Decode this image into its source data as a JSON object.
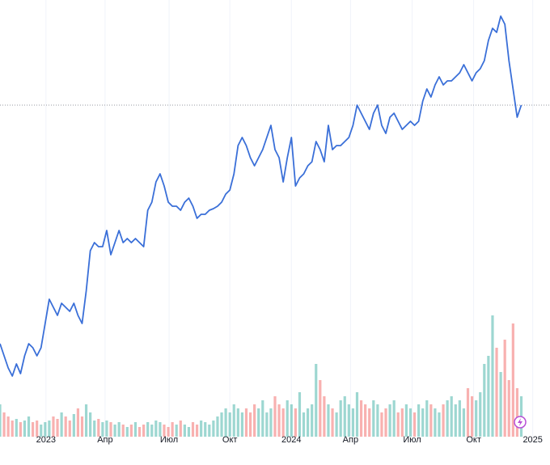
{
  "chart_data": {
    "type": "line",
    "xlim": [
      0,
      134
    ],
    "xticks": [
      {
        "value": 11.2,
        "label": "2023"
      },
      {
        "value": 25.6,
        "label": "Апр"
      },
      {
        "value": 41.2,
        "label": "Июл"
      },
      {
        "value": 56,
        "label": "Окт"
      },
      {
        "value": 71,
        "label": "2024"
      },
      {
        "value": 85.4,
        "label": "Апр"
      },
      {
        "value": 100.4,
        "label": "Июл"
      },
      {
        "value": 115.4,
        "label": "Окт"
      },
      {
        "value": 129.8,
        "label": "2025"
      }
    ],
    "ylim": [
      0,
      540
    ],
    "y2lim": [
      0,
      540
    ],
    "grid": true,
    "series": [
      {
        "color": "#3a6fd8",
        "values": [
          115,
          100,
          85,
          75,
          90,
          78,
          100,
          115,
          110,
          100,
          110,
          140,
          170,
          160,
          150,
          165,
          160,
          155,
          165,
          150,
          140,
          180,
          230,
          240,
          235,
          235,
          255,
          225,
          240,
          255,
          240,
          245,
          240,
          245,
          240,
          235,
          280,
          290,
          315,
          325,
          310,
          290,
          285,
          285,
          280,
          290,
          295,
          285,
          270,
          275,
          275,
          280,
          282,
          285,
          290,
          300,
          305,
          325,
          360,
          370,
          360,
          345,
          335,
          345,
          355,
          370,
          385,
          355,
          345,
          315,
          345,
          370,
          310,
          320,
          325,
          335,
          340,
          365,
          355,
          340,
          385,
          355,
          360,
          360,
          365,
          370,
          385,
          410,
          400,
          390,
          380,
          400,
          410,
          385,
          375,
          395,
          400,
          390,
          380,
          385,
          390,
          385,
          390,
          415,
          430,
          420,
          435,
          445,
          435,
          440,
          440,
          445,
          450,
          460,
          450,
          440,
          450,
          455,
          465,
          490,
          505,
          500,
          520,
          510,
          465,
          430,
          395,
          410
        ]
      },
      {
        "axis": "y2",
        "type": "bar",
        "up_color": "rgba(38,166,154,0.45)",
        "down_color": "rgba(239,83,80,0.45)",
        "values": [
          40,
          30,
          25,
          20,
          22,
          18,
          20,
          25,
          18,
          20,
          15,
          18,
          20,
          25,
          22,
          30,
          25,
          20,
          28,
          35,
          25,
          40,
          30,
          20,
          22,
          18,
          20,
          18,
          15,
          18,
          15,
          12,
          15,
          18,
          12,
          15,
          18,
          15,
          20,
          18,
          15,
          12,
          18,
          15,
          20,
          15,
          12,
          18,
          15,
          20,
          18,
          15,
          20,
          25,
          30,
          35,
          30,
          40,
          35,
          30,
          35,
          30,
          40,
          35,
          45,
          30,
          35,
          50,
          40,
          35,
          45,
          40,
          35,
          55,
          30,
          35,
          40,
          90,
          70,
          50,
          40,
          35,
          30,
          45,
          50,
          40,
          35,
          55,
          45,
          40,
          35,
          45,
          40,
          30,
          35,
          40,
          45,
          30,
          35,
          40,
          35,
          30,
          40,
          35,
          45,
          40,
          35,
          30,
          40,
          45,
          50,
          40,
          45,
          35,
          60,
          50,
          45,
          55,
          90,
          100,
          150,
          110,
          80,
          120,
          70,
          140,
          60,
          50
        ]
      }
    ]
  }
}
